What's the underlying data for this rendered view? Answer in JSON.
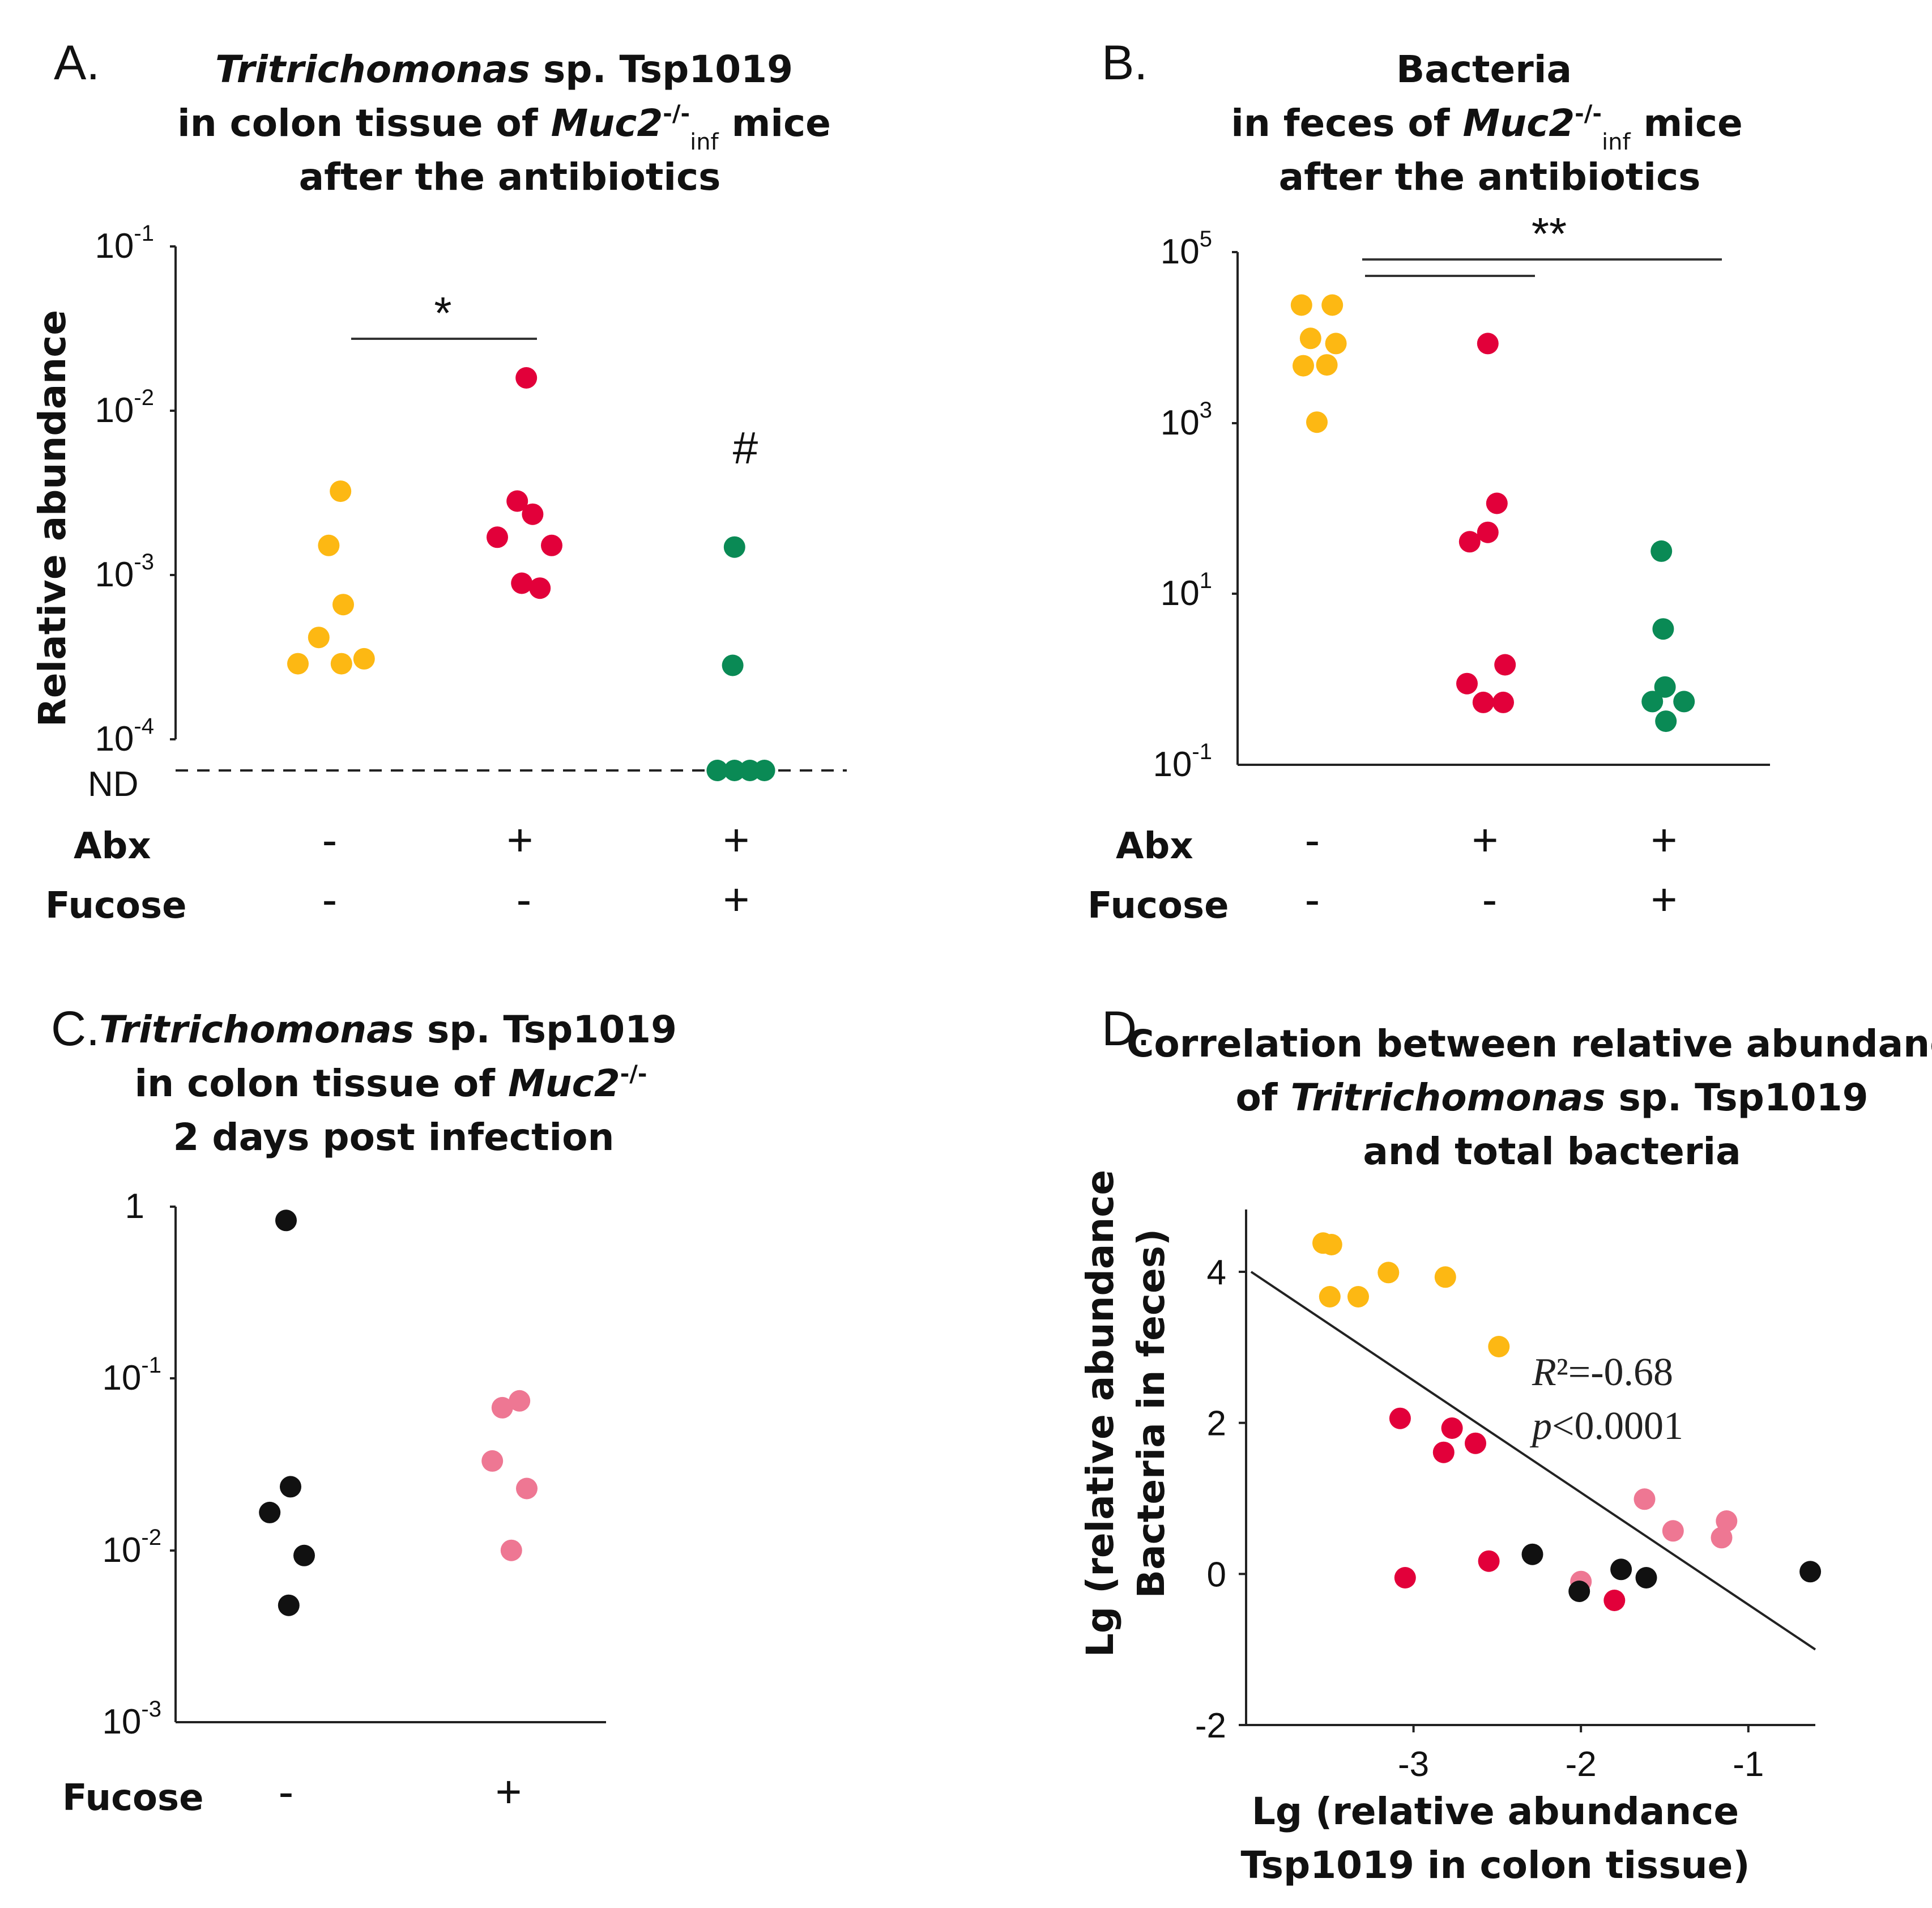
{
  "colors": {
    "untreated": "#FDB813",
    "abx": "#E2003A",
    "abx_fucose": "#0A8A55",
    "c_control": "#111111",
    "c_fucose": "#EE7793"
  },
  "chart_data": [
    {
      "panel": "A.",
      "type": "scatter",
      "title_lines": [
        {
          "italic": "Tritrichomonas",
          "rest": " sp. Tsp1019"
        },
        {
          "pre": "in colon tissue of ",
          "italic": "Muc2",
          "sup": "-/-",
          "sub": "inf",
          "post": " mice"
        },
        {
          "text": "after the antibiotics"
        }
      ],
      "ylabel": "Relative abundance",
      "yscale": "log",
      "ylim": [
        -4,
        -1
      ],
      "yticks": [
        {
          "base": "10",
          "exp": "-1",
          "value": -1
        },
        {
          "base": "10",
          "exp": "-2",
          "value": -2
        },
        {
          "base": "10",
          "exp": "-3",
          "value": -3
        },
        {
          "base": "10",
          "exp": "-4",
          "value": -4
        }
      ],
      "nd_label": "ND",
      "row_labels": [
        "Abx",
        "Fucose"
      ],
      "groups": [
        {
          "abx": "-",
          "fucose": "-",
          "color_key": "untreated",
          "points": [
            [
              -0.35,
              -3.54
            ],
            [
              -0.12,
              -3.38
            ],
            [
              -0.01,
              -2.82
            ],
            [
              0.12,
              -2.49
            ],
            [
              0.13,
              -3.54
            ],
            [
              0.15,
              -3.18
            ],
            [
              0.38,
              -3.51
            ]
          ]
        },
        {
          "abx": "+",
          "fucose": "-",
          "color_key": "abx",
          "points": [
            [
              -0.25,
              -2.77
            ],
            [
              -0.03,
              -2.55
            ],
            [
              0.02,
              -3.05
            ],
            [
              0.14,
              -2.63
            ],
            [
              0.22,
              -3.08
            ],
            [
              0.35,
              -2.82
            ],
            [
              0.07,
              -1.8
            ]
          ]
        },
        {
          "abx": "+",
          "fucose": "+",
          "color_key": "abx_fucose",
          "points": [
            [
              -0.02,
              -2.83
            ],
            [
              -0.04,
              -3.55
            ],
            [
              -0.21,
              "ND"
            ],
            [
              -0.02,
              "ND"
            ],
            [
              0.15,
              "ND"
            ],
            [
              0.31,
              "ND"
            ]
          ]
        }
      ],
      "annotations": {
        "significance": "*",
        "hash": "#"
      }
    },
    {
      "panel": "B.",
      "type": "scatter",
      "title_lines": [
        {
          "text": "Bacteria"
        },
        {
          "pre": "in feces of ",
          "italic": "Muc2",
          "sup": "-/-",
          "sub": "inf",
          "post": " mice"
        },
        {
          "text": "after the antibiotics"
        }
      ],
      "yscale": "log",
      "ylim": [
        -1,
        5
      ],
      "yticks": [
        {
          "base": "10",
          "exp": "5",
          "value": 5
        },
        {
          "base": "10",
          "exp": "3",
          "value": 3
        },
        {
          "base": "10",
          "exp": "1",
          "value": 1
        },
        {
          "base": "10",
          "exp": "-1",
          "value": -1
        }
      ],
      "row_labels": [
        "Abx",
        "Fucose"
      ],
      "groups": [
        {
          "abx": "-",
          "fucose": "-",
          "color_key": "untreated",
          "points": [
            [
              -0.12,
              4.38
            ],
            [
              0.22,
              4.38
            ],
            [
              -0.02,
              3.99
            ],
            [
              0.26,
              3.93
            ],
            [
              -0.1,
              3.67
            ],
            [
              0.16,
              3.68
            ],
            [
              0.05,
              3.01
            ]
          ]
        },
        {
          "abx": "+",
          "fucose": "-",
          "color_key": "abx",
          "points": [
            [
              0.03,
              3.93
            ],
            [
              0.13,
              2.06
            ],
            [
              0.03,
              1.72
            ],
            [
              -0.17,
              1.61
            ],
            [
              0.22,
              0.17
            ],
            [
              -0.2,
              -0.05
            ],
            [
              -0.02,
              -0.27
            ],
            [
              0.2,
              -0.27
            ]
          ]
        },
        {
          "abx": "+",
          "fucose": "+",
          "color_key": "abx_fucose",
          "points": [
            [
              -0.03,
              1.5
            ],
            [
              -0.01,
              0.59
            ],
            [
              0.01,
              -0.09
            ],
            [
              -0.13,
              -0.26
            ],
            [
              0.22,
              -0.26
            ],
            [
              0.02,
              -0.49
            ]
          ]
        }
      ],
      "annotations": {
        "significance": "**"
      }
    },
    {
      "panel": "C.",
      "type": "scatter",
      "title_lines": [
        {
          "italic": "Tritrichomonas",
          "rest": " sp. Tsp1019"
        },
        {
          "pre": "in colon tissue of ",
          "italic": "Muc2",
          "sup": "-/-"
        },
        {
          "text": "2 days post infection"
        }
      ],
      "yscale": "log",
      "ylim": [
        -3,
        0
      ],
      "yticks": [
        {
          "base": "1",
          "exp": "",
          "value": 0
        },
        {
          "base": "10",
          "exp": "-1",
          "value": -1
        },
        {
          "base": "10",
          "exp": "-2",
          "value": -2
        },
        {
          "base": "10",
          "exp": "-3",
          "value": -3
        }
      ],
      "row_labels": [
        "Fucose"
      ],
      "groups": [
        {
          "fucose": "-",
          "color_key": "c_control",
          "points": [
            [
              0.0,
              -0.08
            ],
            [
              0.05,
              -1.63
            ],
            [
              -0.18,
              -1.78
            ],
            [
              0.2,
              -2.03
            ],
            [
              0.03,
              -2.32
            ]
          ]
        },
        {
          "fucose": "+",
          "color_key": "c_fucose",
          "points": [
            [
              -0.07,
              -1.17
            ],
            [
              0.12,
              -1.13
            ],
            [
              -0.18,
              -1.48
            ],
            [
              0.2,
              -1.64
            ],
            [
              0.03,
              -2.0
            ]
          ]
        }
      ]
    },
    {
      "panel": "D.",
      "type": "scatter",
      "title_lines": [
        {
          "text": "Correlation between relative abundance"
        },
        {
          "pre": "of ",
          "italic": "Tritrichomonas",
          "post": " sp. Tsp1019"
        },
        {
          "text": "and total bacteria"
        }
      ],
      "xlabel_lines": [
        "Lg (relative abundance",
        "Tsp1019 in colon tissue)"
      ],
      "ylabel_lines": [
        "Lg (relative abundance",
        "Bacteria in feces)"
      ],
      "xlim": [
        -4.0,
        -0.6
      ],
      "ylim": [
        -2,
        4.8
      ],
      "xticks": [
        -3,
        -2,
        -1
      ],
      "yticks": [
        4,
        2,
        0,
        -2
      ],
      "fit_line": {
        "x1": -3.97,
        "y1": 4.0,
        "x2": -0.6,
        "y2": -1.0
      },
      "stats": {
        "r2_label": "R",
        "r2_rest": "²=-0.68",
        "p_label": "p",
        "p_rest": "<0.0001"
      },
      "series": [
        {
          "name": "untreated",
          "color_key": "untreated",
          "points": [
            [
              -3.54,
              4.38
            ],
            [
              -3.49,
              4.36
            ],
            [
              -3.15,
              3.99
            ],
            [
              -3.5,
              3.67
            ],
            [
              -3.33,
              3.67
            ],
            [
              -2.81,
              3.93
            ],
            [
              -2.49,
              3.01
            ]
          ]
        },
        {
          "name": "abx",
          "color_key": "abx",
          "points": [
            [
              -3.08,
              2.06
            ],
            [
              -2.77,
              1.93
            ],
            [
              -2.82,
              1.61
            ],
            [
              -2.63,
              1.73
            ],
            [
              -3.05,
              -0.05
            ],
            [
              -2.55,
              0.17
            ],
            [
              -1.8,
              -0.35
            ]
          ]
        },
        {
          "name": "abx_fucose",
          "color_key": "c_fucose",
          "points": [
            [
              -1.62,
              0.99
            ],
            [
              -1.45,
              0.57
            ],
            [
              -1.13,
              0.7
            ],
            [
              -1.16,
              0.48
            ],
            [
              -2.0,
              -0.1
            ]
          ]
        },
        {
          "name": "control",
          "color_key": "c_control",
          "points": [
            [
              -2.29,
              0.26
            ],
            [
              -1.76,
              0.06
            ],
            [
              -1.61,
              -0.05
            ],
            [
              -2.01,
              -0.23
            ],
            [
              -0.63,
              0.03
            ]
          ]
        }
      ]
    }
  ]
}
